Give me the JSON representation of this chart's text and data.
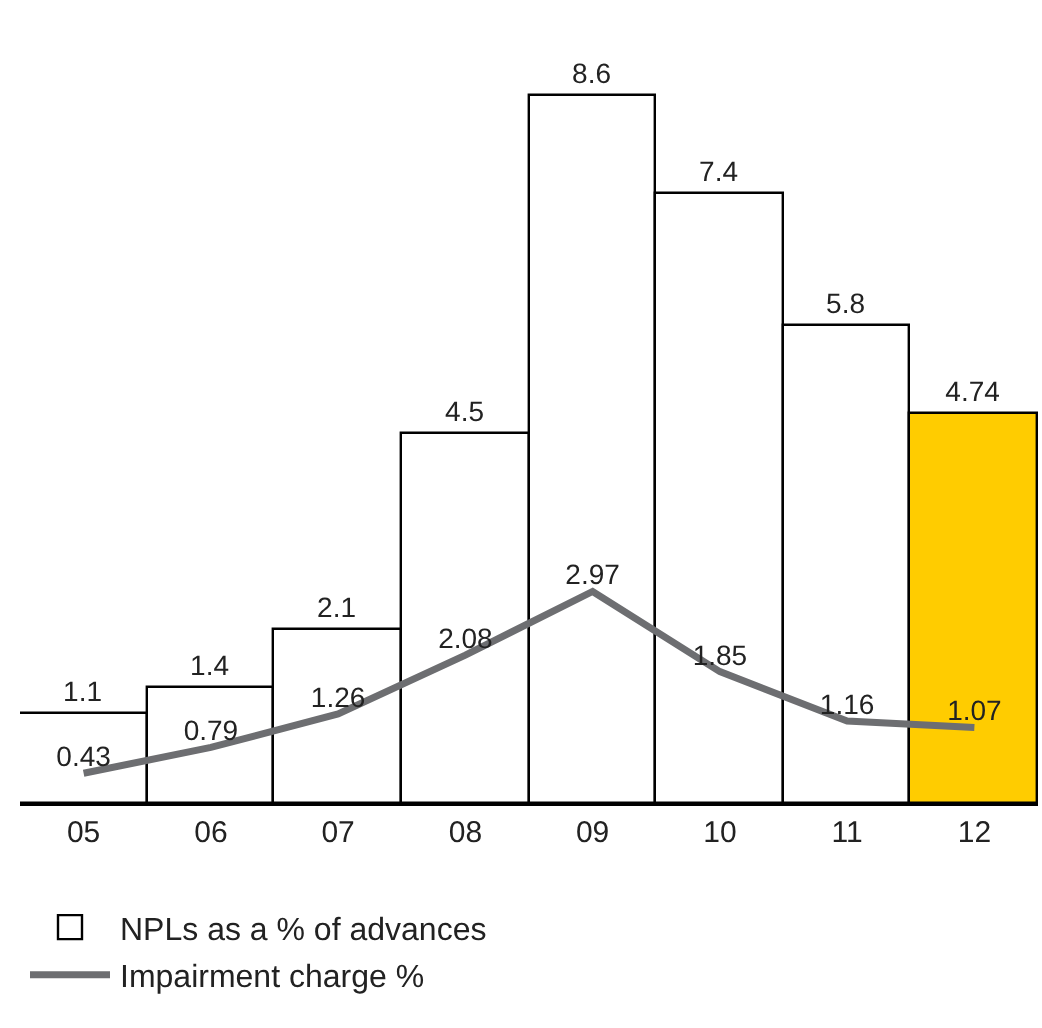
{
  "chart_data": {
    "type": "bar",
    "categories": [
      "05",
      "06",
      "07",
      "08",
      "09",
      "10",
      "11",
      "12"
    ],
    "series": [
      {
        "name": "NPLs as a % of advances",
        "color": "#ffffff",
        "colors": [
          "#ffffff",
          "#ffffff",
          "#ffffff",
          "#ffffff",
          "#ffffff",
          "#ffffff",
          "#ffffff",
          "#ffcc00"
        ],
        "values": [
          1.1,
          1.4,
          2.1,
          4.5,
          8.6,
          7.4,
          5.8,
          4.74
        ]
      },
      {
        "name": "Impairment charge %",
        "type": "line",
        "axis": "y2",
        "color": "#6d6e71",
        "values": [
          0.43,
          0.79,
          1.26,
          2.08,
          2.97,
          1.85,
          1.16,
          1.07
        ]
      }
    ],
    "data_labels": true,
    "legend": "bottom left",
    "marker": "none",
    "line_style": "solid",
    "tick_labels": "x"
  }
}
